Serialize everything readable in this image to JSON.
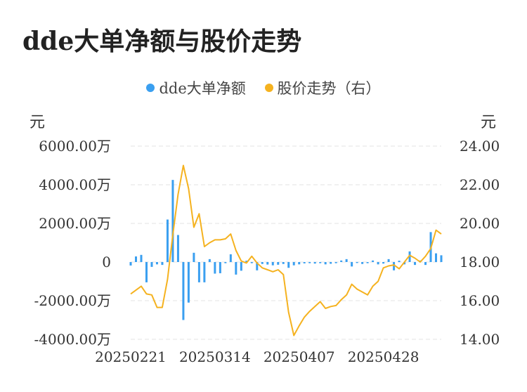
{
  "page_title": "dde大单净额与股价走势",
  "chart_data": {
    "type": "bar+line",
    "title": "dde大单净额与股价走势",
    "legend_placement": "top-center",
    "grid": true,
    "left_axis": {
      "unit": "元",
      "ylim": [
        -4000,
        6000
      ],
      "ticks": [
        6000,
        4000,
        2000,
        0,
        -2000,
        -4000
      ],
      "tick_labels": [
        "6000.00万",
        "4000.00万",
        "2000.00万",
        "0",
        "-2000.00万",
        "-4000.00万"
      ]
    },
    "right_axis": {
      "unit": "元",
      "ylim": [
        14,
        24
      ],
      "ticks": [
        24,
        22,
        20,
        18,
        16,
        14
      ],
      "tick_labels": [
        "24.00",
        "22.00",
        "20.00",
        "18.00",
        "16.00",
        "14.00"
      ]
    },
    "x_tick_labels": [
      {
        "index": 0,
        "label": "20250221"
      },
      {
        "index": 16,
        "label": "20250314"
      },
      {
        "index": 32,
        "label": "20250407"
      },
      {
        "index": 48,
        "label": "20250428"
      }
    ],
    "series": [
      {
        "name": "dde大单净额",
        "type": "bar",
        "axis": "left",
        "color": "#3a9ff0",
        "values": [
          -180,
          290,
          370,
          -1050,
          -250,
          -120,
          -150,
          2200,
          4250,
          1400,
          -3000,
          -2100,
          480,
          -1050,
          -1050,
          150,
          -600,
          -580,
          -60,
          400,
          -650,
          -450,
          70,
          -60,
          -430,
          -100,
          -130,
          -170,
          -140,
          -100,
          -300,
          -170,
          -120,
          -70,
          -60,
          -80,
          -60,
          -120,
          -90,
          -60,
          80,
          150,
          -230,
          -50,
          -100,
          -60,
          80,
          -120,
          -80,
          150,
          -430,
          70,
          -120,
          550,
          -150,
          80,
          -150,
          1550,
          450,
          350
        ]
      },
      {
        "name": "股价走势（右）",
        "type": "line",
        "axis": "right",
        "color": "#f5b21f",
        "values": [
          16.35,
          16.55,
          16.75,
          16.35,
          16.3,
          15.65,
          15.65,
          17.1,
          19.4,
          21.5,
          23.0,
          21.8,
          19.8,
          20.5,
          18.8,
          19.0,
          19.15,
          19.15,
          19.2,
          19.45,
          18.6,
          18.05,
          17.95,
          18.3,
          17.95,
          17.7,
          17.6,
          17.5,
          17.6,
          17.35,
          15.4,
          14.2,
          14.7,
          15.15,
          15.45,
          15.7,
          15.95,
          15.6,
          15.7,
          15.75,
          16.05,
          16.3,
          16.85,
          16.6,
          16.45,
          16.3,
          16.75,
          17.0,
          17.7,
          17.8,
          17.85,
          17.65,
          18.0,
          18.35,
          18.2,
          18.0,
          18.3,
          18.7,
          19.65,
          19.45
        ]
      }
    ]
  }
}
